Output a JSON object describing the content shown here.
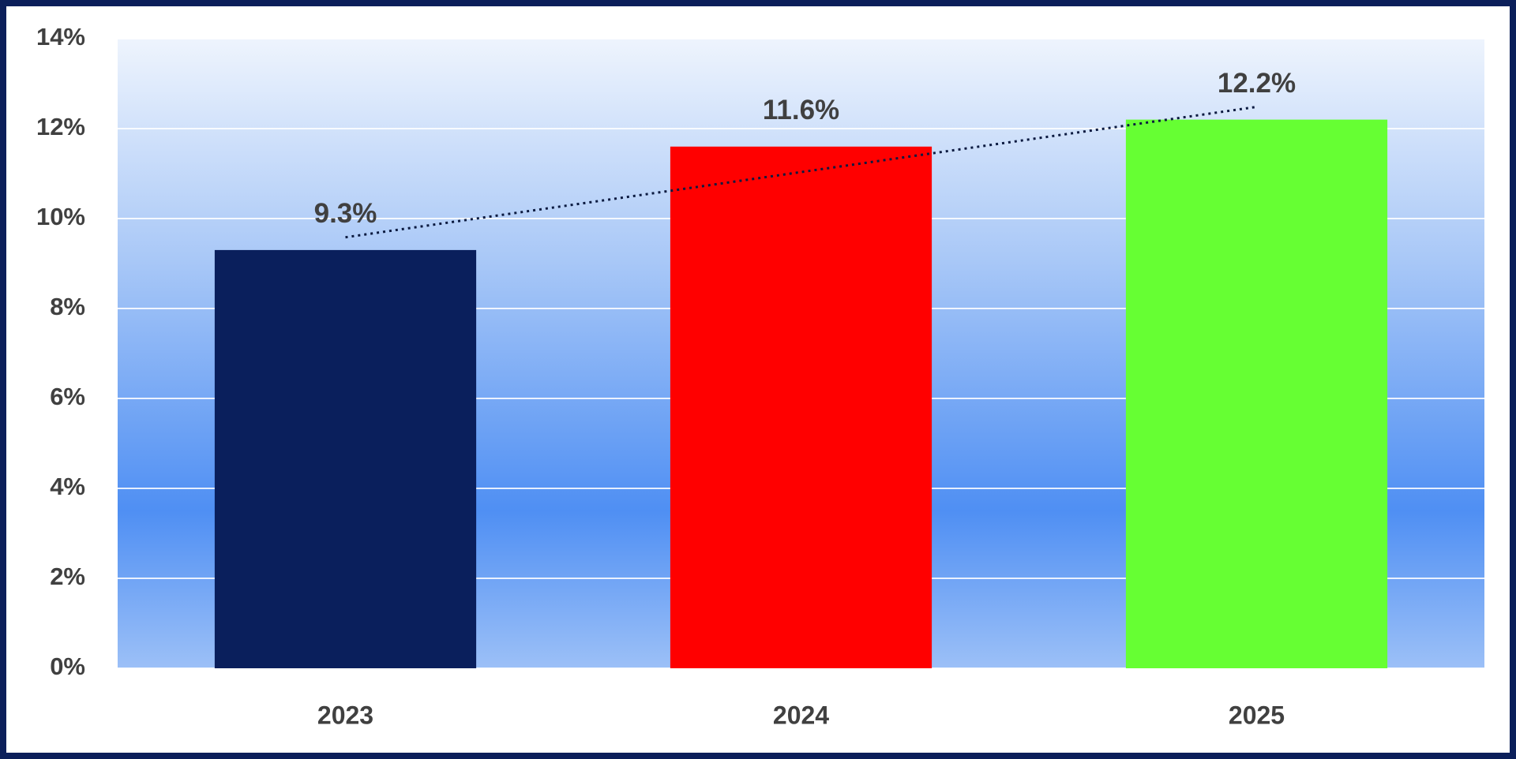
{
  "chart_data": {
    "type": "bar",
    "categories": [
      "2023",
      "2024",
      "2025"
    ],
    "values": [
      9.3,
      11.6,
      12.2
    ],
    "value_labels": [
      "9.3%",
      "11.6%",
      "12.2%"
    ],
    "colors": [
      "#0a1f5c",
      "#ff0000",
      "#66ff33"
    ],
    "ylim": [
      0,
      14
    ],
    "yticks": [
      {
        "value": 0,
        "label": "0%"
      },
      {
        "value": 2,
        "label": "2%"
      },
      {
        "value": 4,
        "label": "4%"
      },
      {
        "value": 6,
        "label": "6%"
      },
      {
        "value": 8,
        "label": "8%"
      },
      {
        "value": 10,
        "label": "10%"
      },
      {
        "value": 12,
        "label": "12%"
      },
      {
        "value": 14,
        "label": "14%"
      }
    ],
    "grid": true,
    "trendline": "linear"
  }
}
